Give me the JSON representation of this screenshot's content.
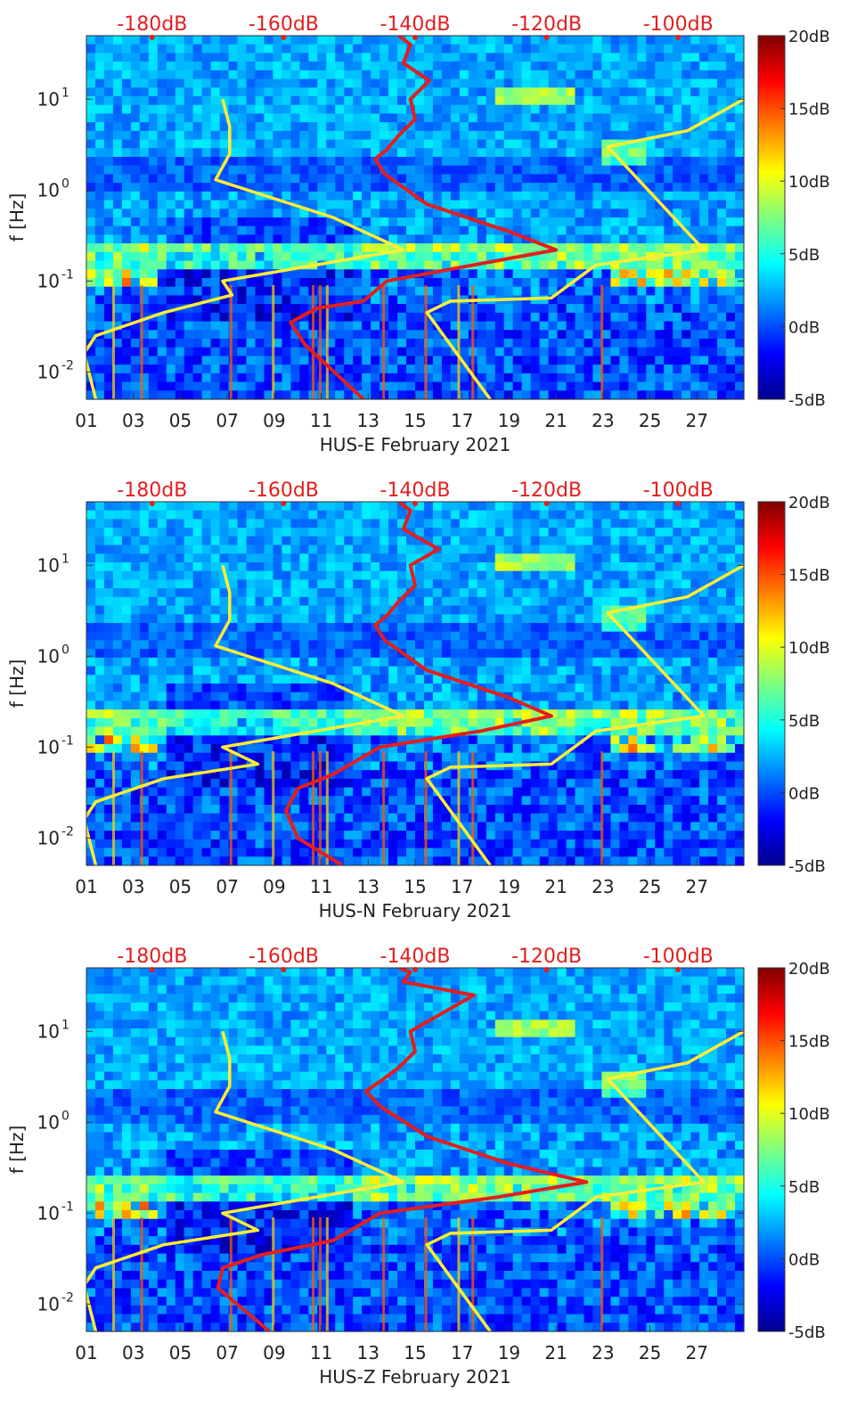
{
  "figure": {
    "y_axis_label": "f [Hz]",
    "y_ticks": [
      {
        "label": "10",
        "exp": "-2",
        "value": 0.01
      },
      {
        "label": "10",
        "exp": "-1",
        "value": 0.1
      },
      {
        "label": "10",
        "exp": "0",
        "value": 1
      },
      {
        "label": "10",
        "exp": "1",
        "value": 10
      }
    ],
    "x_ticks": [
      "01",
      "03",
      "05",
      "07",
      "09",
      "11",
      "13",
      "15",
      "17",
      "19",
      "21",
      "23",
      "25",
      "27"
    ],
    "top_ticks": [
      "-180dB",
      "-160dB",
      "-140dB",
      "-120dB",
      "-100dB"
    ],
    "colorbar_ticks": [
      "20dB",
      "15dB",
      "10dB",
      "5dB",
      "0dB",
      "-5dB"
    ]
  },
  "chart_data": [
    {
      "type": "heatmap",
      "title": "HUS-E February 2021",
      "xlabel": "HUS-E February 2021",
      "ylabel": "f [Hz]",
      "xlim": [
        1,
        29
      ],
      "ylim": [
        0.005,
        50
      ],
      "y_scale": "log",
      "colorbar": {
        "min_dB": -5,
        "max_dB": 20,
        "colormap": "jet"
      },
      "top_axis": {
        "label_units": "dB",
        "xlim": [
          -190,
          -90
        ]
      },
      "overlay_series": [
        {
          "name": "noise-model-low",
          "color": "#ffee33",
          "points": [
            [
              1.4,
              0.005
            ],
            [
              0.9,
              0.016
            ],
            [
              1.4,
              0.025
            ],
            [
              4.3,
              0.045
            ],
            [
              7.2,
              0.07
            ],
            [
              6.8,
              0.1
            ],
            [
              14.5,
              0.22
            ],
            [
              11.5,
              0.5
            ],
            [
              6.5,
              1.3
            ],
            [
              7.1,
              2.5
            ],
            [
              7.1,
              5
            ],
            [
              6.8,
              10
            ]
          ]
        },
        {
          "name": "noise-model-high",
          "color": "#ffee33",
          "points": [
            [
              18.2,
              0.005
            ],
            [
              15.5,
              0.045
            ],
            [
              16.5,
              0.06
            ],
            [
              20.8,
              0.065
            ],
            [
              22.7,
              0.15
            ],
            [
              27.3,
              0.22
            ],
            [
              23.2,
              3
            ],
            [
              26.6,
              4.5
            ],
            [
              29,
              10
            ]
          ]
        },
        {
          "name": "median-psd",
          "color": "#e31e1e",
          "points": [
            [
              12.8,
              0.005
            ],
            [
              10.3,
              0.02
            ],
            [
              9.7,
              0.035
            ],
            [
              10.8,
              0.05
            ],
            [
              12.8,
              0.06
            ],
            [
              13.8,
              0.1
            ],
            [
              17.5,
              0.15
            ],
            [
              21.0,
              0.22
            ],
            [
              19.0,
              0.35
            ],
            [
              15.5,
              0.7
            ],
            [
              13.7,
              1.5
            ],
            [
              13.3,
              2.2
            ],
            [
              13.8,
              2.8
            ],
            [
              14.3,
              4
            ],
            [
              15.0,
              6
            ],
            [
              14.8,
              10
            ],
            [
              15.6,
              16
            ],
            [
              14.5,
              25
            ],
            [
              14.8,
              40
            ],
            [
              14.3,
              50
            ]
          ]
        }
      ]
    },
    {
      "type": "heatmap",
      "title": "HUS-N February 2021",
      "xlabel": "HUS-N February 2021",
      "ylabel": "f [Hz]",
      "xlim": [
        1,
        29
      ],
      "ylim": [
        0.005,
        50
      ],
      "y_scale": "log",
      "colorbar": {
        "min_dB": -5,
        "max_dB": 20,
        "colormap": "jet"
      },
      "top_axis": {
        "label_units": "dB",
        "xlim": [
          -190,
          -90
        ]
      },
      "overlay_series": [
        {
          "name": "noise-model-low",
          "color": "#ffee33",
          "points": [
            [
              1.4,
              0.005
            ],
            [
              0.9,
              0.016
            ],
            [
              1.4,
              0.025
            ],
            [
              4.3,
              0.045
            ],
            [
              8.3,
              0.065
            ],
            [
              6.8,
              0.1
            ],
            [
              14.5,
              0.22
            ],
            [
              11.5,
              0.5
            ],
            [
              6.5,
              1.3
            ],
            [
              7.1,
              2.5
            ],
            [
              7.1,
              5
            ],
            [
              6.8,
              10
            ]
          ]
        },
        {
          "name": "noise-model-high",
          "color": "#ffee33",
          "points": [
            [
              18.2,
              0.005
            ],
            [
              15.5,
              0.045
            ],
            [
              16.5,
              0.06
            ],
            [
              20.8,
              0.065
            ],
            [
              22.7,
              0.15
            ],
            [
              27.3,
              0.22
            ],
            [
              23.2,
              3
            ],
            [
              26.6,
              4.5
            ],
            [
              29,
              10
            ]
          ]
        },
        {
          "name": "median-psd",
          "color": "#e31e1e",
          "points": [
            [
              11.9,
              0.005
            ],
            [
              10.0,
              0.01
            ],
            [
              9.5,
              0.02
            ],
            [
              10.0,
              0.035
            ],
            [
              11.5,
              0.05
            ],
            [
              13.5,
              0.1
            ],
            [
              17.8,
              0.15
            ],
            [
              20.8,
              0.22
            ],
            [
              19.0,
              0.35
            ],
            [
              15.5,
              0.7
            ],
            [
              13.7,
              1.5
            ],
            [
              13.3,
              2.2
            ],
            [
              13.8,
              2.8
            ],
            [
              14.3,
              4
            ],
            [
              15.0,
              6
            ],
            [
              14.8,
              10
            ],
            [
              16.0,
              15
            ],
            [
              14.5,
              25
            ],
            [
              14.8,
              40
            ],
            [
              14.3,
              50
            ]
          ]
        }
      ]
    },
    {
      "type": "heatmap",
      "title": "HUS-Z February 2021",
      "xlabel": "HUS-Z February 2021",
      "ylabel": "f [Hz]",
      "xlim": [
        1,
        29
      ],
      "ylim": [
        0.005,
        50
      ],
      "y_scale": "log",
      "colorbar": {
        "min_dB": -5,
        "max_dB": 20,
        "colormap": "jet"
      },
      "top_axis": {
        "label_units": "dB",
        "xlim": [
          -190,
          -90
        ]
      },
      "overlay_series": [
        {
          "name": "noise-model-low",
          "color": "#ffee33",
          "points": [
            [
              1.4,
              0.005
            ],
            [
              0.9,
              0.016
            ],
            [
              1.4,
              0.025
            ],
            [
              4.3,
              0.045
            ],
            [
              8.3,
              0.065
            ],
            [
              6.8,
              0.1
            ],
            [
              14.5,
              0.22
            ],
            [
              11.5,
              0.5
            ],
            [
              6.5,
              1.3
            ],
            [
              7.1,
              2.5
            ],
            [
              7.1,
              5
            ],
            [
              6.8,
              10
            ]
          ]
        },
        {
          "name": "noise-model-high",
          "color": "#ffee33",
          "points": [
            [
              18.2,
              0.005
            ],
            [
              15.5,
              0.045
            ],
            [
              16.5,
              0.06
            ],
            [
              20.8,
              0.065
            ],
            [
              22.7,
              0.15
            ],
            [
              27.3,
              0.22
            ],
            [
              23.2,
              3
            ],
            [
              26.6,
              4.5
            ],
            [
              29,
              10
            ]
          ]
        },
        {
          "name": "median-psd",
          "color": "#e31e1e",
          "points": [
            [
              8.8,
              0.005
            ],
            [
              6.6,
              0.015
            ],
            [
              6.8,
              0.025
            ],
            [
              8.5,
              0.035
            ],
            [
              11.5,
              0.05
            ],
            [
              13.5,
              0.1
            ],
            [
              18.5,
              0.15
            ],
            [
              22.3,
              0.22
            ],
            [
              19.0,
              0.35
            ],
            [
              15.5,
              0.7
            ],
            [
              13.5,
              1.5
            ],
            [
              12.9,
              2.2
            ],
            [
              13.5,
              2.8
            ],
            [
              14.3,
              4
            ],
            [
              15.0,
              6
            ],
            [
              14.8,
              10
            ],
            [
              17.5,
              25
            ],
            [
              14.5,
              35
            ],
            [
              14.8,
              45
            ],
            [
              14.3,
              50
            ]
          ]
        }
      ]
    }
  ]
}
